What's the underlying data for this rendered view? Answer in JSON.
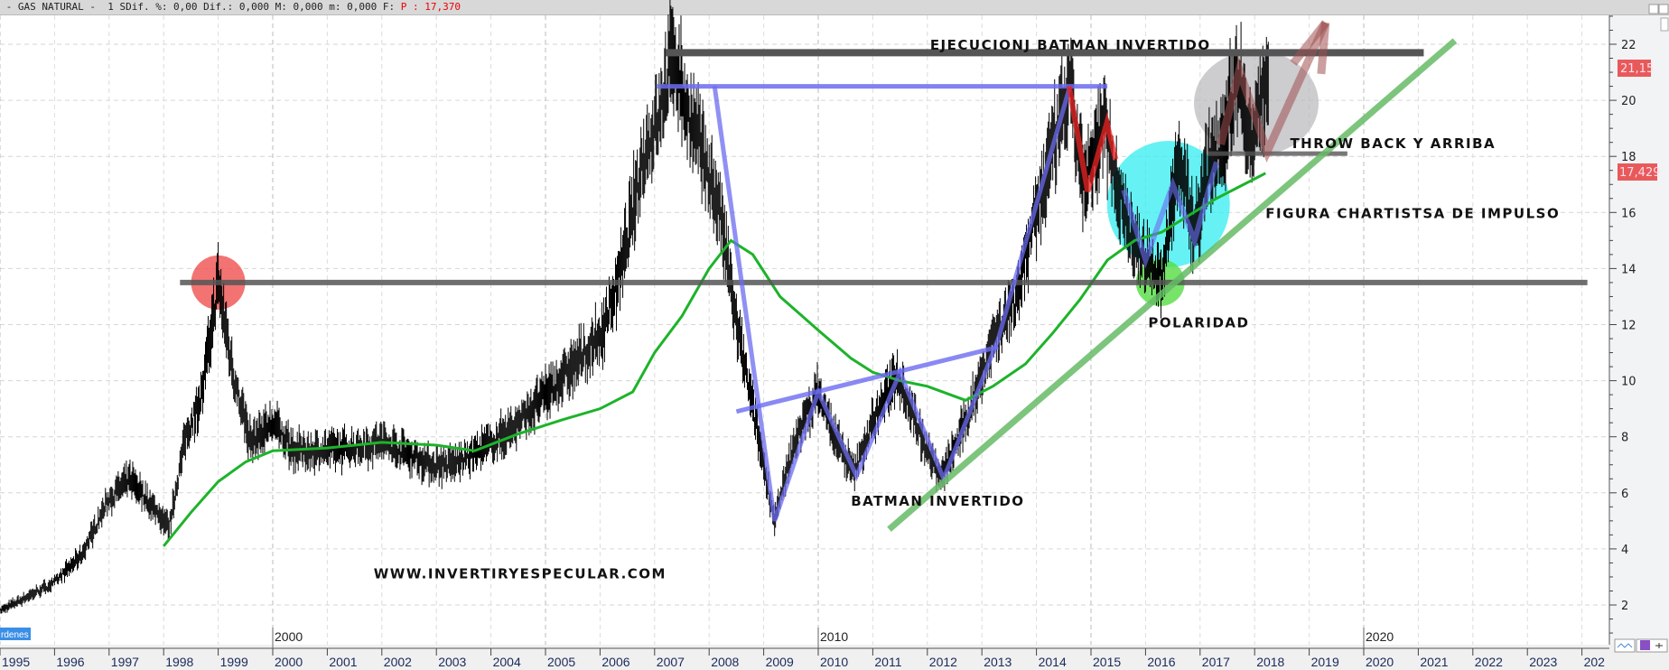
{
  "header": {
    "symbol": " - GAS NATURAL -  1 S",
    "stats": "Dif. %: 0,00 Dif.: 0,000 M: 0,000 m: 0,000 F: ",
    "price": "P : 17,370"
  },
  "bottom_label": "rdenes",
  "decade_labels": [
    "2000",
    "2010",
    "2020"
  ],
  "price_labels": {
    "upper": "21,15",
    "lower": "17,429",
    "color": "#e85a5a"
  },
  "chart_data": {
    "type": "line",
    "title": "GAS NATURAL",
    "xlabel": "",
    "ylabel": "",
    "xlim": [
      1995,
      2024.5
    ],
    "ylim": [
      1,
      23
    ],
    "grid": true,
    "x_ticks": [
      "1995",
      "1996",
      "1997",
      "1998",
      "1999",
      "2000",
      "2001",
      "2002",
      "2003",
      "2004",
      "2005",
      "2006",
      "2007",
      "2008",
      "2009",
      "2010",
      "2011",
      "2012",
      "2013",
      "2014",
      "2015",
      "2016",
      "2017",
      "2018",
      "2019",
      "2020",
      "2021",
      "2022",
      "2023",
      "202"
    ],
    "y_ticks": [
      2,
      4,
      6,
      8,
      10,
      12,
      14,
      16,
      18,
      20,
      22
    ],
    "series": [
      {
        "kind": "price",
        "color": "#000000",
        "x": [
          1995.0,
          1995.5,
          1996.0,
          1996.5,
          1997.0,
          1997.4,
          1997.8,
          1998.1,
          1998.4,
          1998.7,
          1999.0,
          1999.3,
          1999.6,
          2000.0,
          2000.4,
          2000.8,
          2001.5,
          2002.0,
          2002.5,
          2002.9,
          2003.3,
          2003.8,
          2004.4,
          2004.9,
          2005.5,
          2006.0,
          2006.4,
          2006.8,
          2007.1,
          2007.35,
          2007.6,
          2007.9,
          2008.2,
          2008.5,
          2008.8,
          2009.2,
          2009.6,
          2010.0,
          2010.3,
          2010.65,
          2011.0,
          2011.45,
          2011.8,
          2012.25,
          2012.7,
          2013.2,
          2013.6,
          2014.0,
          2014.6,
          2014.9,
          2015.25,
          2015.5,
          2015.8,
          2016.3,
          2016.6,
          2016.9,
          2017.2,
          2017.4,
          2017.7,
          2017.95,
          2018.1,
          2018.25
        ],
        "y": [
          1.8,
          2.3,
          2.8,
          3.8,
          5.8,
          6.5,
          5.5,
          4.8,
          8.0,
          9.5,
          13.5,
          10.0,
          7.8,
          8.5,
          7.5,
          7.5,
          7.6,
          7.8,
          7.4,
          7.0,
          7.0,
          7.5,
          8.3,
          9.3,
          10.5,
          11.5,
          14.0,
          18.0,
          19.5,
          21.8,
          19.5,
          18.0,
          16.0,
          12.0,
          9.0,
          5.0,
          8.0,
          9.6,
          8.0,
          6.7,
          8.5,
          10.3,
          8.5,
          6.5,
          8.5,
          11.5,
          12.8,
          16.0,
          20.4,
          16.8,
          19.3,
          16.8,
          14.8,
          13.6,
          18.0,
          15.3,
          18.0,
          18.5,
          21.1,
          18.2,
          20.0,
          21.1
        ]
      },
      {
        "kind": "moving-average",
        "color": "#1db32a",
        "x": [
          1998.0,
          1998.5,
          1999.0,
          1999.5,
          2000.0,
          2001.0,
          2002.0,
          2003.0,
          2003.7,
          2004.5,
          2005.3,
          2006.0,
          2006.6,
          2007.0,
          2007.5,
          2008.0,
          2008.4,
          2008.8,
          2009.3,
          2010.0,
          2010.6,
          2011.0,
          2011.5,
          2012.0,
          2012.7,
          2013.2,
          2013.8,
          2014.3,
          2014.8,
          2015.3,
          2015.8,
          2016.3,
          2016.8,
          2017.3,
          2017.8,
          2018.2
        ],
        "y": [
          4.1,
          5.3,
          6.4,
          7.1,
          7.5,
          7.6,
          7.8,
          7.7,
          7.5,
          8.1,
          8.6,
          9.0,
          9.6,
          11.0,
          12.3,
          14.0,
          15.0,
          14.5,
          13.0,
          11.8,
          10.8,
          10.3,
          10.0,
          9.8,
          9.3,
          9.8,
          10.6,
          11.7,
          12.9,
          14.3,
          15.0,
          15.3,
          15.9,
          16.5,
          17.0,
          17.4
        ]
      }
    ],
    "annotations": {
      "texts": [
        {
          "text": "EJECUCIONJ BATMAN INVERTIDO",
          "x": 2012.05,
          "y": 21.8
        },
        {
          "text": "THROW BACK Y ARRIBA",
          "x": 2018.65,
          "y": 18.3
        },
        {
          "text": "FIGURA CHARTISTSA DE IMPULSO",
          "x": 2018.2,
          "y": 15.8
        },
        {
          "text": "POLARIDAD",
          "x": 2016.05,
          "y": 11.9
        },
        {
          "text": "BATMAN INVERTIDO",
          "x": 2010.6,
          "y": 5.55
        },
        {
          "text": "WWW.INVERTIRYESPECULAR.COM",
          "x": 2001.85,
          "y": 2.95
        }
      ],
      "lines": [
        {
          "name": "resistance-top",
          "color": "#555555",
          "points": [
            [
              2007.2,
              21.7
            ],
            [
              2021.1,
              21.7
            ]
          ]
        },
        {
          "name": "polarity-level",
          "color": "#555555",
          "points": [
            [
              1998.3,
              13.5
            ],
            [
              2024.1,
              13.5
            ]
          ]
        },
        {
          "name": "throwback-level",
          "color": "#555555",
          "points": [
            [
              2017.15,
              18.1
            ],
            [
              2019.7,
              18.1
            ]
          ]
        },
        {
          "name": "batman-top",
          "color": "#6b6bf0",
          "points": [
            [
              2007.05,
              20.5
            ],
            [
              2015.3,
              20.5
            ]
          ]
        },
        {
          "name": "batman-zigzag",
          "color": "#6b6bf0",
          "points": [
            [
              2008.1,
              20.5
            ],
            [
              2009.2,
              5.0
            ],
            [
              2010.0,
              9.6
            ],
            [
              2010.7,
              6.6
            ],
            [
              2011.5,
              10.3
            ],
            [
              2012.3,
              6.5
            ],
            [
              2013.3,
              11.5
            ],
            [
              2014.6,
              20.4
            ]
          ]
        },
        {
          "name": "batman-neckline",
          "color": "#6b6bf0",
          "points": [
            [
              2008.5,
              8.9
            ],
            [
              2013.3,
              11.2
            ]
          ]
        },
        {
          "name": "impulse-zigzag",
          "color": "#6b6bf0",
          "points": [
            [
              2015.6,
              16.8
            ],
            [
              2016.0,
              14.3
            ],
            [
              2016.5,
              17.0
            ],
            [
              2016.9,
              15.0
            ],
            [
              2017.3,
              17.8
            ]
          ]
        },
        {
          "name": "red-zigzag",
          "color": "#ee2222",
          "points": [
            [
              2014.6,
              20.5
            ],
            [
              2014.94,
              16.75
            ],
            [
              2015.29,
              19.2
            ],
            [
              2015.45,
              17.9
            ]
          ]
        },
        {
          "name": "uptrend",
          "color": "#66bb66",
          "points": [
            [
              2011.3,
              4.7
            ],
            [
              2021.67,
              22.13
            ]
          ]
        },
        {
          "name": "projection-arrow",
          "color": "#a05050",
          "points": [
            [
              2017.38,
              18.43
            ],
            [
              2017.72,
              21.07
            ],
            [
              2018.23,
              18.17
            ],
            [
              2019.3,
              22.77
            ]
          ]
        },
        {
          "name": "projection-arrowhead-left",
          "color": "#a05050",
          "points": [
            [
              2018.71,
              21.32
            ],
            [
              2019.3,
              22.77
            ]
          ]
        },
        {
          "name": "projection-arrowhead-right",
          "color": "#a05050",
          "points": [
            [
              2019.22,
              20.94
            ],
            [
              2019.3,
              22.77
            ]
          ]
        }
      ],
      "circles": [
        {
          "name": "peak-1999-circle",
          "color": "#f05050",
          "x": 1999.0,
          "y": 13.5
        },
        {
          "name": "impulse-circle",
          "color": "#33eef0",
          "x": 2016.42,
          "y": 16.3
        },
        {
          "name": "polarity-circle",
          "color": "#55dd44",
          "x": 2016.27,
          "y": 13.5
        },
        {
          "name": "throwback-ellipse",
          "color": "#b8b8bc",
          "x": 2018.03,
          "y": 19.9
        }
      ]
    }
  }
}
